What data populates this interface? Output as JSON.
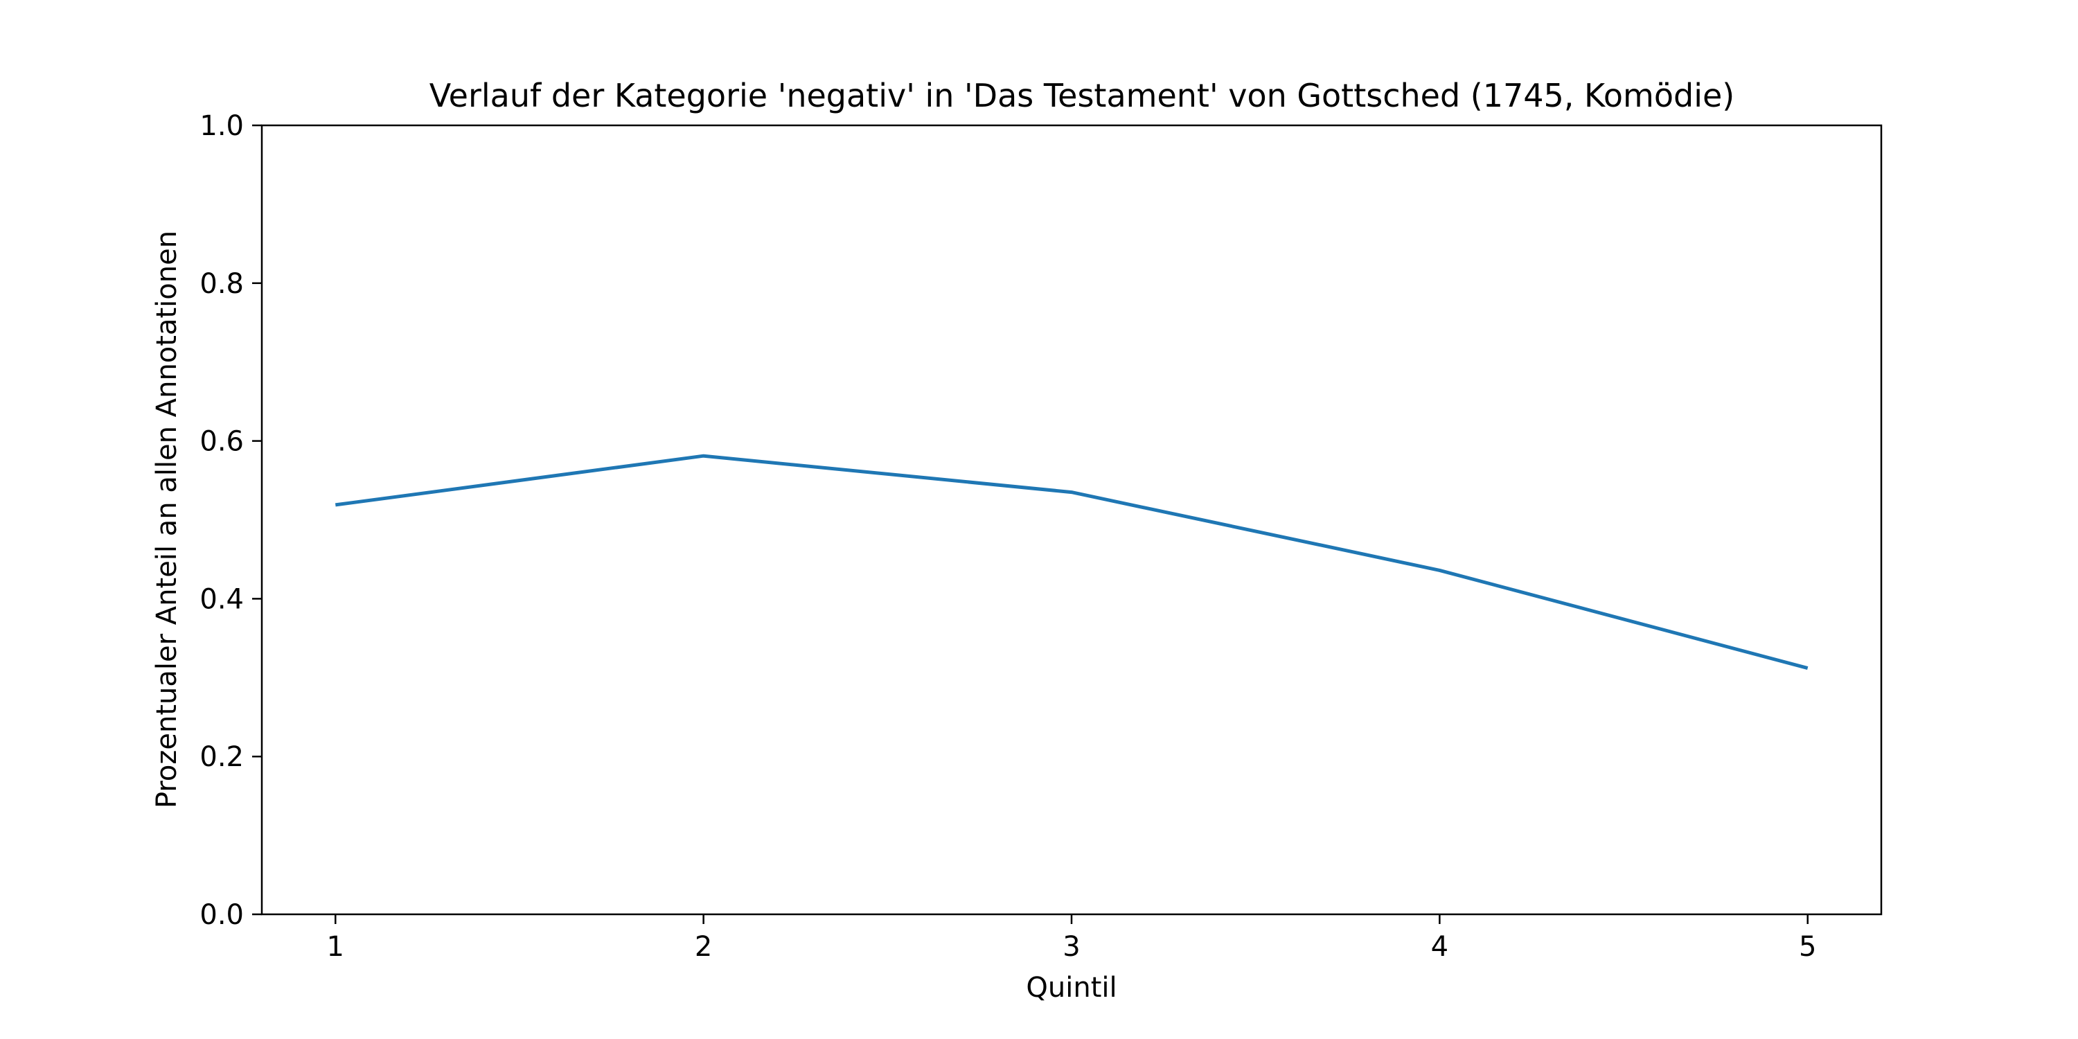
{
  "chart_data": {
    "type": "line",
    "title": "Verlauf der Kategorie 'negativ' in 'Das Testament' von Gottsched (1745, Komödie)",
    "xlabel": "Quintil",
    "ylabel": "Prozentualer Anteil an allen Annotationen",
    "x": [
      1,
      2,
      3,
      4,
      5
    ],
    "x_ticks": [
      "1",
      "2",
      "3",
      "4",
      "5"
    ],
    "y_ticks": [
      "0.0",
      "0.2",
      "0.4",
      "0.6",
      "0.8",
      "1.0"
    ],
    "xlim": [
      0.8,
      5.2
    ],
    "ylim": [
      0,
      1
    ],
    "grid": false,
    "series": [
      {
        "values": [
          0.519,
          0.581,
          0.535,
          0.436,
          0.312
        ],
        "color": "#1f77b4"
      }
    ]
  }
}
